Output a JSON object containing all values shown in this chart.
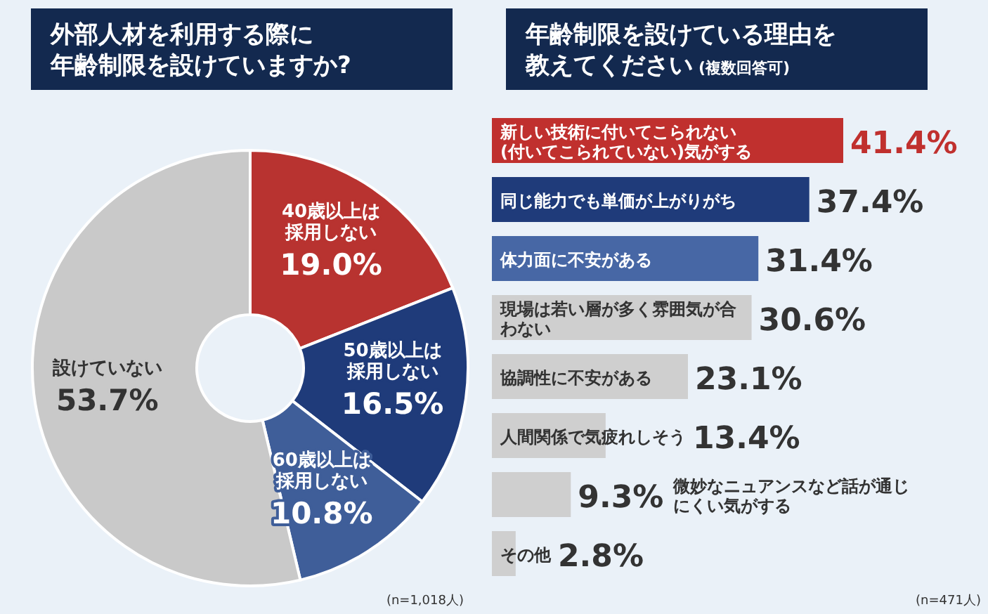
{
  "chart_data": [
    {
      "type": "donut",
      "title": "外部人材を利用する際に年齢制限を設けていますか?",
      "categories": [
        "40歳以上は採用しない",
        "50歳以上は採用しない",
        "60歳以上は採用しない",
        "設けていない"
      ],
      "values": [
        19.0,
        16.5,
        10.8,
        53.7
      ],
      "colors": [
        "#b83330",
        "#1f3b7a",
        "#3f5e99",
        "#c9c9c9"
      ],
      "value_labels": [
        "19.0%",
        "16.5%",
        "10.8%",
        "53.7%"
      ],
      "annotations": [
        "(n=1,018人)"
      ]
    },
    {
      "type": "bar",
      "orientation": "horizontal",
      "title": "年齢制限を設けている理由を教えてください",
      "subtitle": "(複数回答可)",
      "categories": [
        "新しい技術に付いてこられない(付いてこられていない)気がする",
        "同じ能力でも単価が上がりがち",
        "体力面に不安がある",
        "現場は若い層が多く雰囲気が合わない",
        "協調性に不安がある",
        "人間関係で気疲れしそう",
        "微妙なニュアンスなど話が通じにくい気がする",
        "その他"
      ],
      "values": [
        41.4,
        37.4,
        31.4,
        30.6,
        23.1,
        13.4,
        9.3,
        2.8
      ],
      "colors": [
        "#c0302e",
        "#1f3b7a",
        "#4767a5",
        "#cfcfcf",
        "#cfcfcf",
        "#cfcfcf",
        "#cfcfcf",
        "#cfcfcf"
      ],
      "value_labels": [
        "41.4%",
        "37.4%",
        "31.4%",
        "30.6%",
        "23.1%",
        "13.4%",
        "9.3%",
        "2.8%"
      ],
      "annotations": [
        "(n=471人)"
      ]
    }
  ]
}
